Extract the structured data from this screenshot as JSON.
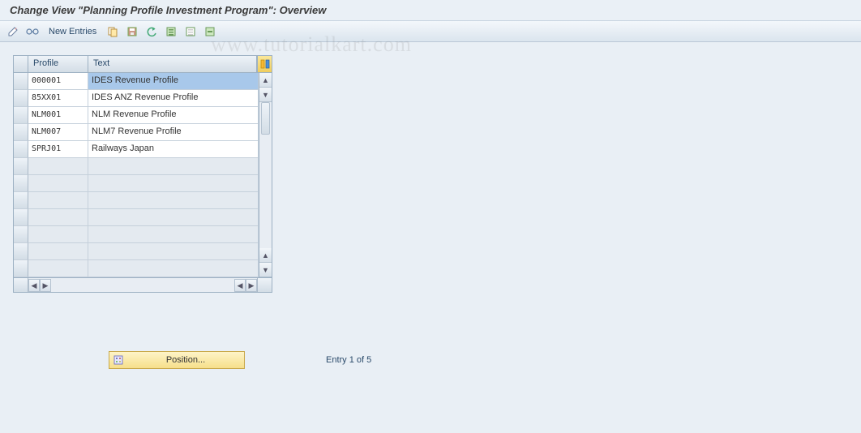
{
  "title": "Change View \"Planning Profile Investment Program\": Overview",
  "toolbar": {
    "new_entries_label": "New Entries"
  },
  "columns": {
    "profile": "Profile",
    "text": "Text"
  },
  "rows": [
    {
      "profile": "000001",
      "text": "IDES Revenue Profile",
      "selected": true
    },
    {
      "profile": "85XX01",
      "text": "IDES ANZ Revenue Profile",
      "selected": false
    },
    {
      "profile": "NLM001",
      "text": "NLM Revenue Profile",
      "selected": false
    },
    {
      "profile": "NLM007",
      "text": "NLM7 Revenue Profile",
      "selected": false
    },
    {
      "profile": "SPRJ01",
      "text": "Railways Japan",
      "selected": false
    }
  ],
  "empty_row_count": 7,
  "position_button_label": "Position...",
  "entry_status": "Entry 1 of 5",
  "watermark": "www.tutorialkart.com",
  "colors": {
    "page_bg": "#e9eff5",
    "header_border": "#c8d4e0",
    "table_border": "#9db1c3",
    "config_btn_bg_top": "#fae79a",
    "config_btn_bg_bottom": "#f0cd5c",
    "row_selected_bg": "#a8c8ea",
    "position_btn_top": "#fef4c8",
    "position_btn_bottom": "#f6df8a"
  }
}
